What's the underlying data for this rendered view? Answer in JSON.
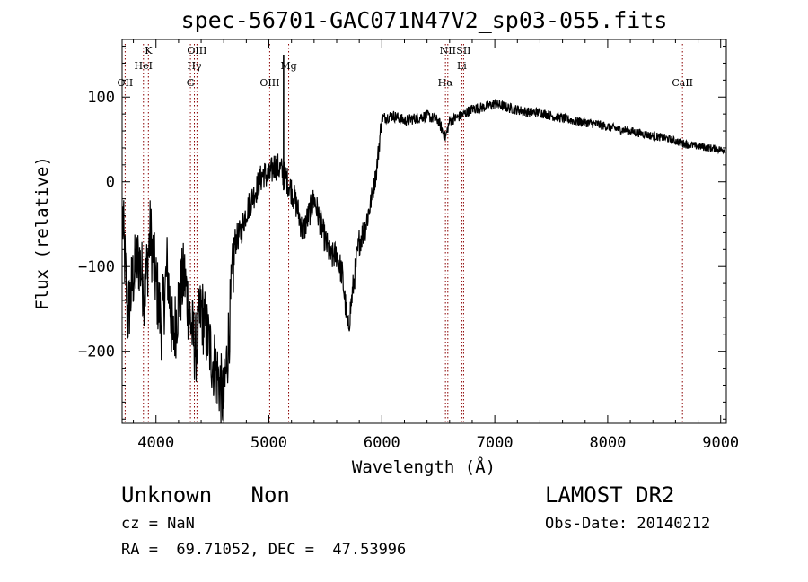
{
  "chart_data": {
    "type": "line",
    "title": "spec-56701-GAC071N47V2_sp03-055.fits",
    "xlabel": "Wavelength (Å)",
    "ylabel": "Flux (relative)",
    "xlim": [
      3700,
      9050
    ],
    "ylim": [
      -285,
      168
    ],
    "x_ticks": [
      4000,
      5000,
      6000,
      7000,
      8000,
      9000
    ],
    "y_ticks": [
      100,
      0,
      -100,
      -200
    ],
    "grid": false,
    "lines": [
      {
        "name": "OII",
        "x": 3727,
        "row": 3
      },
      {
        "name": "K",
        "x": 3933,
        "row": 1
      },
      {
        "name": "HeI",
        "x": 3889,
        "row": 2
      },
      {
        "name": "OIII",
        "x": 4363,
        "row": 1
      },
      {
        "name": "Hγ",
        "x": 4340,
        "row": 2
      },
      {
        "name": "G",
        "x": 4305,
        "row": 3
      },
      {
        "name": "Mg",
        "x": 5175,
        "row": 2
      },
      {
        "name": "OIII",
        "x": 5007,
        "row": 3
      },
      {
        "name": "NII",
        "x": 6584,
        "row": 1
      },
      {
        "name": "Li",
        "x": 6708,
        "row": 2
      },
      {
        "name": "Hα",
        "x": 6563,
        "row": 3
      },
      {
        "name": "SII",
        "x": 6724,
        "row": 1
      },
      {
        "name": "CaII",
        "x": 8662,
        "row": 3
      }
    ],
    "spectrum": {
      "x": [
        3700,
        3750,
        3800,
        3850,
        3900,
        3950,
        4000,
        4050,
        4100,
        4150,
        4200,
        4250,
        4300,
        4350,
        4400,
        4450,
        4500,
        4550,
        4600,
        4650,
        4700,
        4750,
        4800,
        4850,
        4900,
        4950,
        5000,
        5050,
        5100,
        5150,
        5200,
        5250,
        5300,
        5350,
        5400,
        5450,
        5500,
        5550,
        5600,
        5650,
        5700,
        5750,
        5800,
        5850,
        5900,
        5950,
        6000,
        6100,
        6200,
        6300,
        6400,
        6500,
        6563,
        6600,
        6700,
        6800,
        6900,
        7000,
        7100,
        7200,
        7300,
        7400,
        7500,
        7600,
        7700,
        7800,
        7900,
        8000,
        8100,
        8200,
        8300,
        8400,
        8500,
        8600,
        8700,
        8800,
        8900,
        9000
      ],
      "y": [
        -30,
        -160,
        -110,
        -90,
        -130,
        -60,
        -120,
        -170,
        -100,
        -190,
        -140,
        -110,
        -160,
        -200,
        -150,
        -180,
        -210,
        -230,
        -260,
        -170,
        -70,
        -60,
        -35,
        -20,
        -5,
        10,
        5,
        20,
        15,
        5,
        -10,
        -30,
        -60,
        -40,
        -20,
        -45,
        -70,
        -90,
        -85,
        -110,
        -175,
        -120,
        -70,
        -55,
        -25,
        10,
        75,
        78,
        72,
        75,
        78,
        72,
        52,
        72,
        78,
        86,
        88,
        92,
        88,
        85,
        82,
        82,
        78,
        75,
        72,
        70,
        68,
        65,
        62,
        60,
        57,
        54,
        52,
        48,
        44,
        42,
        40,
        38
      ]
    }
  },
  "footer": {
    "class_text": "Unknown   Non",
    "cz_text": "cz = NaN",
    "radec_text": "RA =  69.71052, DEC =  47.53996",
    "survey_text": "LAMOST DR2",
    "obsdate_text": "Obs-Date: 20140212"
  }
}
